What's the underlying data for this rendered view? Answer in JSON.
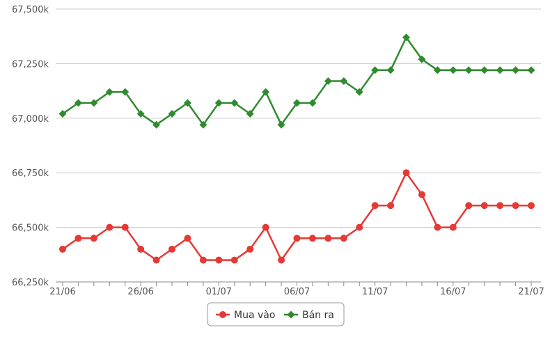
{
  "chart_data": {
    "type": "line",
    "title": "",
    "xlabel": "",
    "ylabel": "",
    "ylim": [
      66250,
      67500
    ],
    "yticks": [
      "66,250k",
      "66,500k",
      "66,750k",
      "67,000k",
      "67,250k",
      "67,500k"
    ],
    "ytick_values": [
      66250,
      66500,
      66750,
      67000,
      67250,
      67500
    ],
    "x": [
      "21/06",
      "22/06",
      "23/06",
      "24/06",
      "25/06",
      "26/06",
      "27/06",
      "28/06",
      "29/06",
      "30/06",
      "01/07",
      "02/07",
      "03/07",
      "04/07",
      "05/07",
      "06/07",
      "07/07",
      "08/07",
      "09/07",
      "10/07",
      "11/07",
      "12/07",
      "13/07",
      "14/07",
      "15/07",
      "16/07",
      "17/07",
      "18/07",
      "19/07",
      "20/07",
      "21/07"
    ],
    "xtick_labels": [
      "21/06",
      "26/06",
      "01/07",
      "06/07",
      "11/07",
      "16/07",
      "21/07"
    ],
    "xtick_indices": [
      0,
      5,
      10,
      15,
      20,
      25,
      30
    ],
    "grid": true,
    "legend": "bottom-center",
    "series": [
      {
        "name": "Mua vào",
        "color": "#e53935",
        "marker": "circle",
        "values": [
          66400,
          66450,
          66450,
          66500,
          66500,
          66400,
          66350,
          66400,
          66450,
          66350,
          66350,
          66350,
          66400,
          66500,
          66350,
          66450,
          66450,
          66450,
          66450,
          66500,
          66600,
          66600,
          66750,
          66650,
          66500,
          66500,
          66600,
          66600,
          66600,
          66600,
          66600
        ]
      },
      {
        "name": "Bán ra",
        "color": "#2e8b2e",
        "marker": "diamond",
        "values": [
          67020,
          67070,
          67070,
          67120,
          67120,
          67020,
          66970,
          67020,
          67070,
          66970,
          67070,
          67070,
          67020,
          67120,
          66970,
          67070,
          67070,
          67170,
          67170,
          67120,
          67220,
          67220,
          67370,
          67270,
          67220,
          67220,
          67220,
          67220,
          67220,
          67220,
          67220
        ]
      }
    ]
  }
}
